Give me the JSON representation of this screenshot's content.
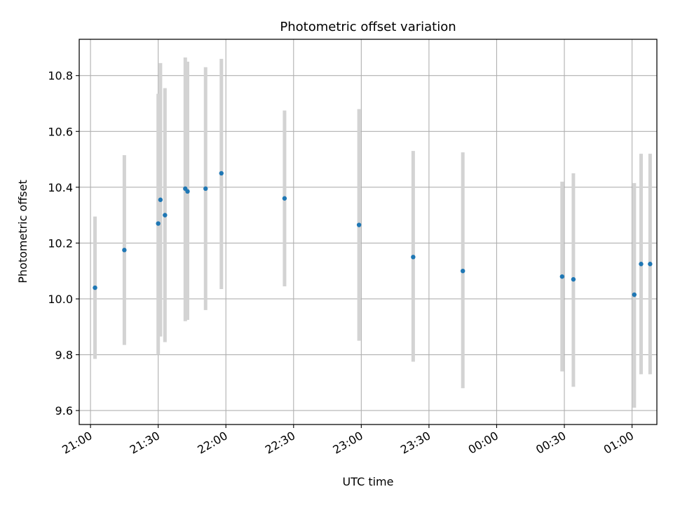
{
  "chart_data": {
    "type": "scatter",
    "title": "Photometric offset variation",
    "xlabel": "UTC time",
    "ylabel": "Photometric offset",
    "xlim": [
      "20:55",
      "01:11"
    ],
    "ylim": [
      9.55,
      10.93
    ],
    "x_ticks": [
      "21:00",
      "21:30",
      "22:00",
      "22:30",
      "23:00",
      "23:30",
      "00:00",
      "00:30",
      "01:00"
    ],
    "y_ticks": [
      9.6,
      9.8,
      10.0,
      10.2,
      10.4,
      10.6,
      10.8
    ],
    "y_tick_labels": [
      "9.6",
      "9.8",
      "10.0",
      "10.2",
      "10.4",
      "10.6",
      "10.8"
    ],
    "grid": true,
    "colors": {
      "point": "#1f77b4",
      "errorbar": "#d3d3d3",
      "grid": "#b0b0b0"
    },
    "series": [
      {
        "points": [
          {
            "x": "21:02",
            "y": 10.04,
            "ylow": 9.785,
            "yhigh": 10.295
          },
          {
            "x": "21:15",
            "y": 10.175,
            "ylow": 9.835,
            "yhigh": 10.515
          },
          {
            "x": "21:30",
            "y": 10.27,
            "ylow": 9.8,
            "yhigh": 10.735
          },
          {
            "x": "21:31",
            "y": 10.355,
            "ylow": 9.865,
            "yhigh": 10.845
          },
          {
            "x": "21:33",
            "y": 10.3,
            "ylow": 9.845,
            "yhigh": 10.755
          },
          {
            "x": "21:42",
            "y": 10.395,
            "ylow": 9.92,
            "yhigh": 10.865
          },
          {
            "x": "21:43",
            "y": 10.385,
            "ylow": 9.925,
            "yhigh": 10.85
          },
          {
            "x": "21:51",
            "y": 10.395,
            "ylow": 9.96,
            "yhigh": 10.83
          },
          {
            "x": "21:58",
            "y": 10.45,
            "ylow": 10.035,
            "yhigh": 10.86
          },
          {
            "x": "22:26",
            "y": 10.36,
            "ylow": 10.045,
            "yhigh": 10.675
          },
          {
            "x": "22:59",
            "y": 10.265,
            "ylow": 9.85,
            "yhigh": 10.68
          },
          {
            "x": "23:23",
            "y": 10.15,
            "ylow": 9.775,
            "yhigh": 10.53
          },
          {
            "x": "23:45",
            "y": 10.1,
            "ylow": 9.68,
            "yhigh": 10.525
          },
          {
            "x": "00:29",
            "y": 10.08,
            "ylow": 9.74,
            "yhigh": 10.42
          },
          {
            "x": "00:34",
            "y": 10.07,
            "ylow": 9.685,
            "yhigh": 10.45
          },
          {
            "x": "01:01",
            "y": 10.015,
            "ylow": 9.61,
            "yhigh": 10.415
          },
          {
            "x": "01:04",
            "y": 10.125,
            "ylow": 9.73,
            "yhigh": 10.52
          },
          {
            "x": "01:08",
            "y": 10.125,
            "ylow": 9.73,
            "yhigh": 10.52
          }
        ]
      }
    ]
  }
}
